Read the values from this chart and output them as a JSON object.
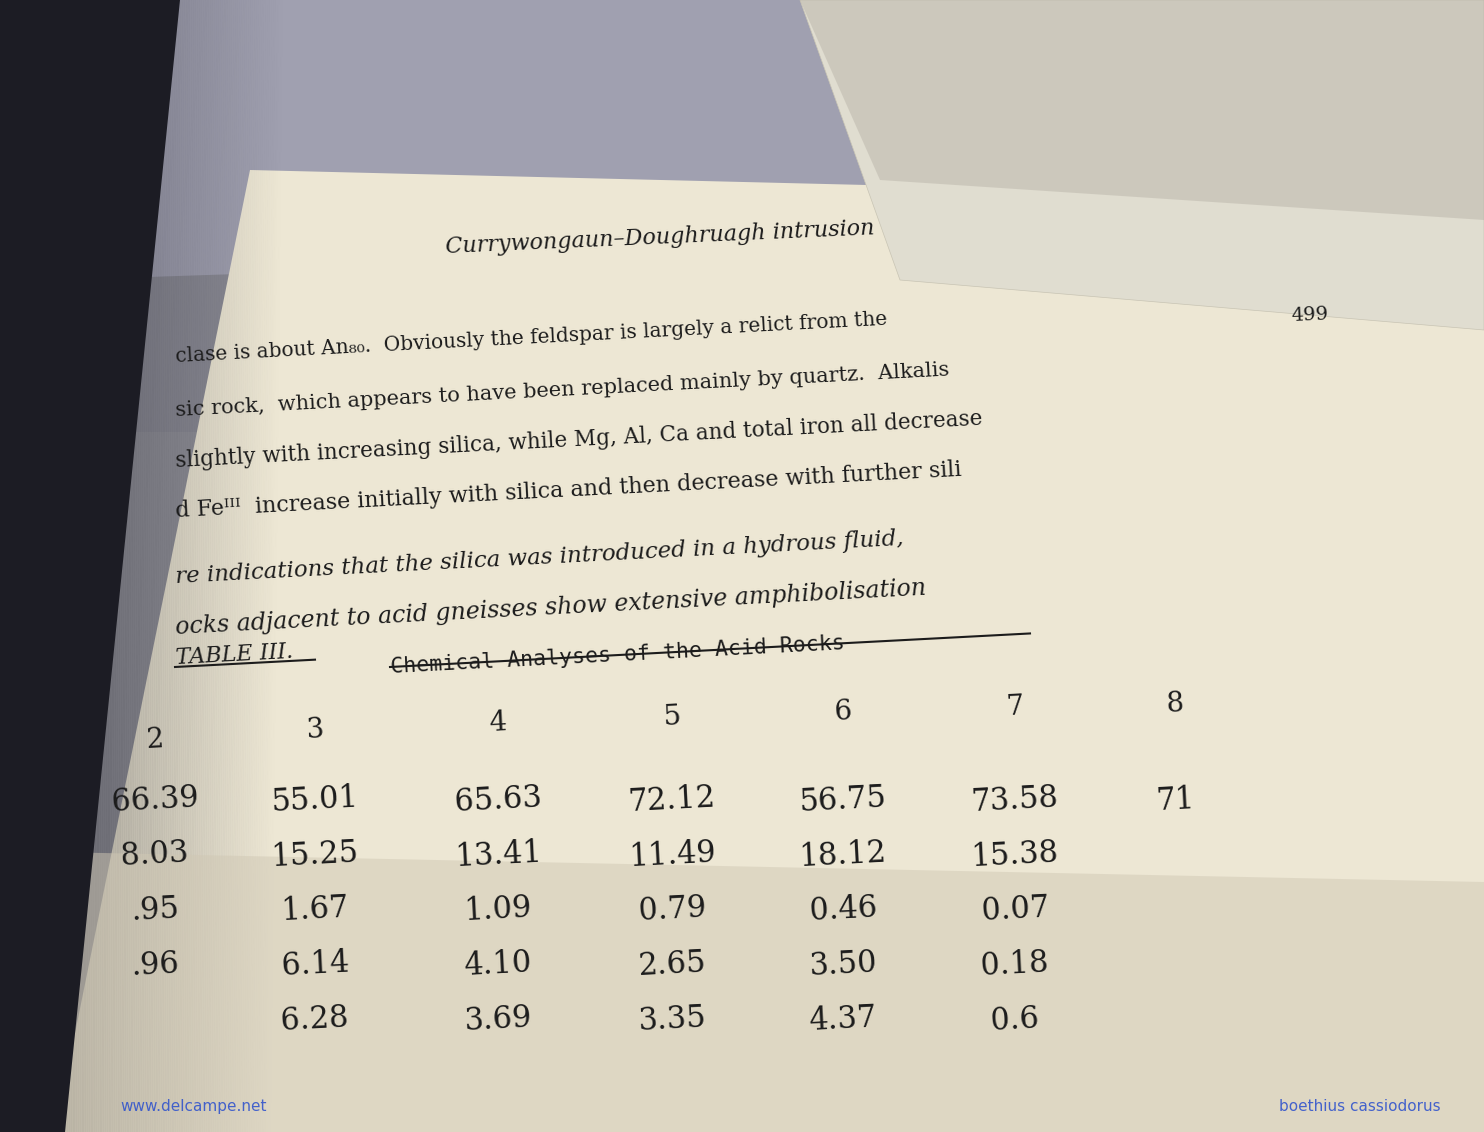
{
  "page_title": "Currywongaun–Doughruagh intrusion",
  "page_number": "499",
  "p1_lines": [
    "clase is about An₈₀.  Obviously the feldspar is largely a relict from the",
    "sic rock,  which appears to have been replaced mainly by quartz.  Alkalis",
    "slightly with increasing silica, while Mg, Al, Ca and total iron all decrease",
    "d Feᴵᴵᴵ  increase initially with silica and then decrease with further sili"
  ],
  "p2_lines": [
    "re indications that the silica was introduced in a hydrous fluid,",
    "ocks adjacent to acid gneisses show extensive amphibolisation"
  ],
  "table_label": "TABLE III.",
  "table_title": "Chemical Analyses of the Acid Rocks",
  "col_headers": [
    "2",
    "3",
    "4",
    "5",
    "6",
    "7",
    "8"
  ],
  "rows": [
    [
      "66.39",
      "55.01",
      "65.63",
      "72.12",
      "56.75",
      "73.58",
      "71"
    ],
    [
      "8.03",
      "15.25",
      "13.41",
      "11.49",
      "18.12",
      "15.38",
      ""
    ],
    [
      ".95",
      "1.67",
      "1.09",
      "0.79",
      "0.46",
      "0.07",
      ""
    ],
    [
      ".96",
      "6.14",
      "4.10",
      "2.65",
      "3.50",
      "0.18",
      ""
    ],
    [
      "",
      "6.28",
      "3.69",
      "3.35",
      "4.37",
      "0.6",
      ""
    ]
  ],
  "text_color": "#1c1c1c",
  "watermark_left": "www.delcampe.net",
  "watermark_right": "boethius cassiodorus",
  "bg_gray": "#9090a0",
  "page_cream": "#ece5d0",
  "page_cream_lower": "#d8d0bc",
  "shadow_dark": "#2a2a30"
}
